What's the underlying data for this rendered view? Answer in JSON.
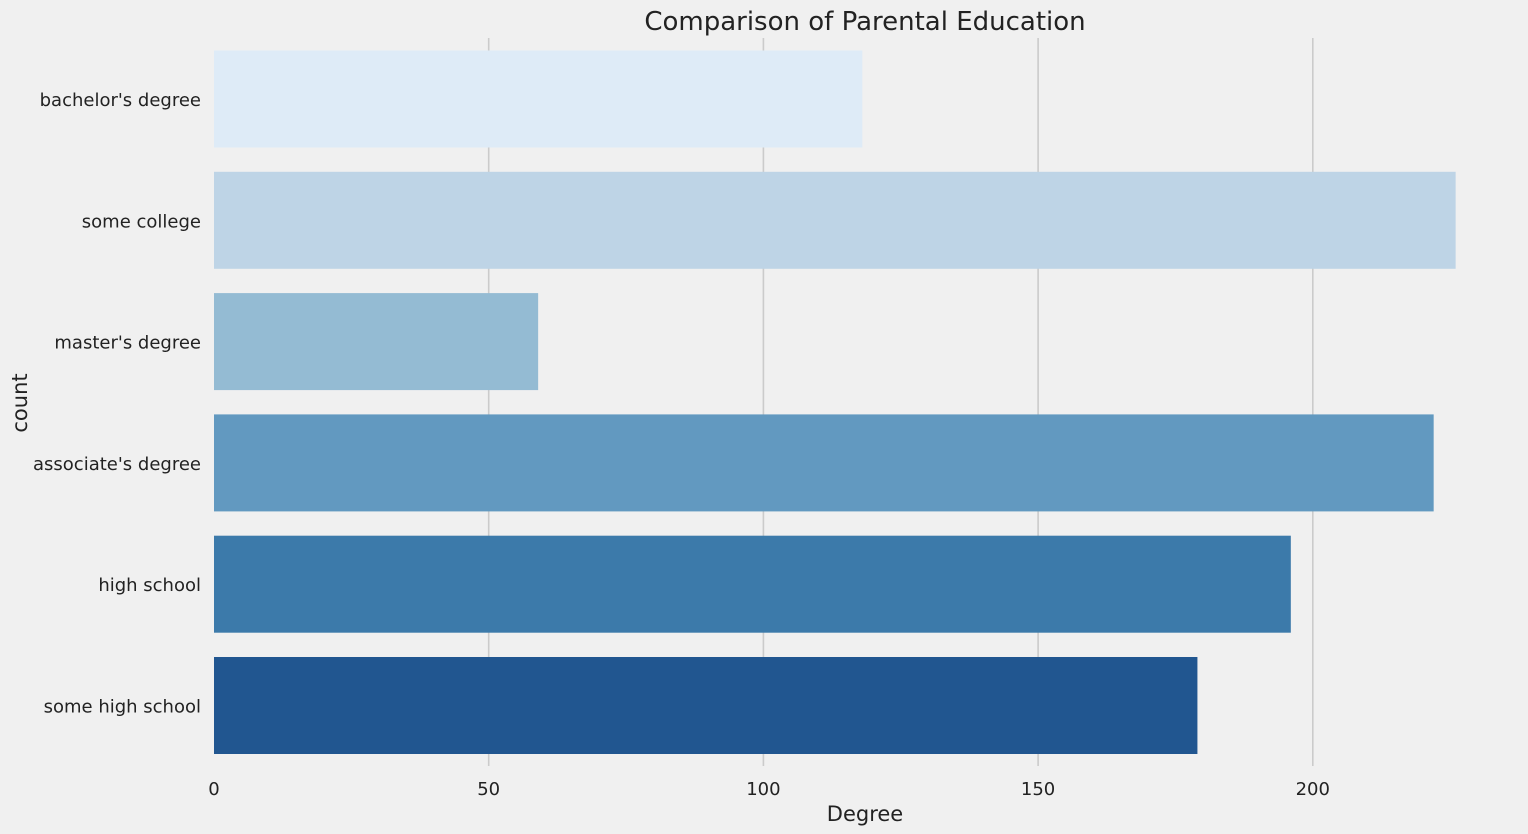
{
  "chart_data": {
    "type": "bar",
    "orientation": "horizontal",
    "title": "Comparison of Parental Education",
    "xlabel": "Degree",
    "ylabel": "count",
    "categories": [
      "bachelor's degree",
      "some college",
      "master's degree",
      "associate's degree",
      "high school",
      "some high school"
    ],
    "values": [
      118,
      226,
      59,
      222,
      196,
      179
    ],
    "colors": [
      "#deebf7",
      "#bed4e6",
      "#94bbd3",
      "#6299c0",
      "#3c7aaa",
      "#215690"
    ],
    "xticks": [
      0,
      50,
      100,
      150,
      200
    ],
    "xlim": [
      0,
      235
    ],
    "grid": "vertical",
    "background": "#f0f0f0"
  }
}
